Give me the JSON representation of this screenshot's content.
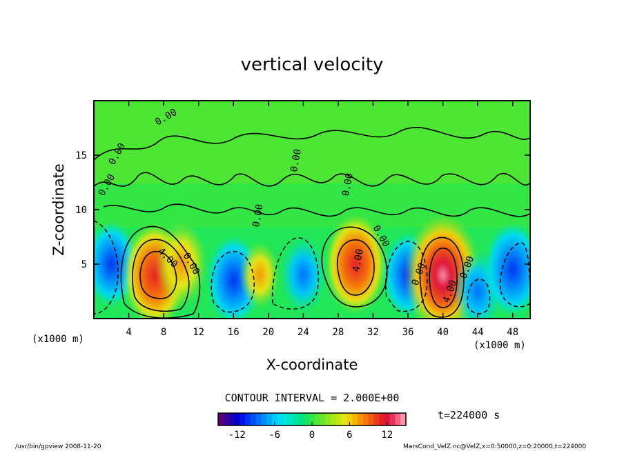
{
  "chart_data": {
    "type": "heatmap",
    "title": "vertical velocity",
    "xlabel": "X-coordinate",
    "ylabel": "Z-coordinate",
    "x_unit": "(x1000 m)",
    "z_unit": "(x1000 m)",
    "xlim": [
      0,
      50
    ],
    "ylim": [
      0,
      20
    ],
    "x_ticks": [
      4,
      8,
      12,
      16,
      20,
      24,
      28,
      32,
      36,
      40,
      44,
      48
    ],
    "y_ticks": [
      5,
      10,
      15
    ],
    "contour_interval_label": "CONTOUR INTERVAL = 2.000E+00",
    "contour_labels": [
      "0.00",
      "0.00",
      "0.00",
      "0.00",
      "0.00",
      "0.00",
      "0.00",
      "0.00",
      "4.00",
      "0.00",
      "4.00",
      "4.00",
      "0.00"
    ],
    "colorbar": {
      "min": -15,
      "max": 15,
      "ticks": [
        -12,
        -6,
        0,
        6,
        12
      ],
      "colors": [
        "#5a0078",
        "#3c0096",
        "#1e00b4",
        "#0000d2",
        "#0014e6",
        "#0032f0",
        "#0050f5",
        "#006ef8",
        "#008cfa",
        "#00aafa",
        "#00c8f8",
        "#00dcf0",
        "#00e6dc",
        "#00e6be",
        "#00e6a0",
        "#00e682",
        "#14e664",
        "#32e646",
        "#50e632",
        "#6ee628",
        "#8ce61e",
        "#aae614",
        "#c8e614",
        "#e6e614",
        "#f0d20a",
        "#f5b40a",
        "#f5960a",
        "#f5780a",
        "#f05a14",
        "#eb3c1e",
        "#e61e28",
        "#dc143c",
        "#e6325a",
        "#f06482",
        "#fa96aa"
      ]
    },
    "time_label": "t=224000 s",
    "cells": [
      {
        "x": 3,
        "z": 8,
        "w": 0.0
      },
      {
        "x": 2,
        "z": 5,
        "w": -7
      },
      {
        "x": 7,
        "z": 4,
        "w": 11
      },
      {
        "x": 10,
        "z": 5,
        "w": 7
      },
      {
        "x": 16,
        "z": 3.5,
        "w": -8
      },
      {
        "x": 19,
        "z": 4,
        "w": 3
      },
      {
        "x": 24,
        "z": 4,
        "w": -5
      },
      {
        "x": 30,
        "z": 5,
        "w": 10
      },
      {
        "x": 36,
        "z": 4,
        "w": -7
      },
      {
        "x": 40,
        "z": 4,
        "w": 15
      },
      {
        "x": 44,
        "z": 2.5,
        "w": -6
      },
      {
        "x": 48,
        "z": 4.5,
        "w": -9
      }
    ]
  },
  "footer": {
    "program": "/usr/bin/gpview  2008-11-20",
    "source": "MarsCond_VelZ.nc@VelZ,x=0:50000,z=0:20000,t=224000"
  }
}
